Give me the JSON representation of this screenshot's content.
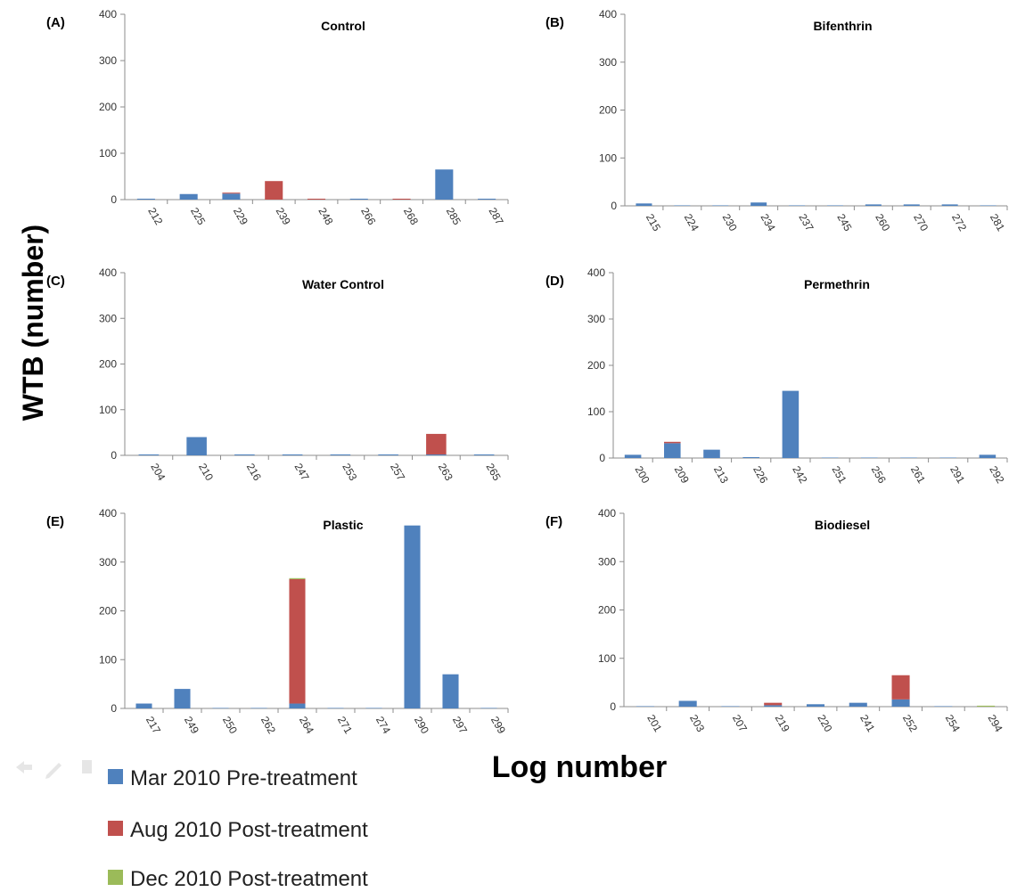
{
  "figure": {
    "ylabel": "WTB (number)",
    "xlabel": "Log number"
  },
  "legend": [
    {
      "label": "Mar 2010 Pre-treatment",
      "color": "#4f81bd"
    },
    {
      "label": "Aug 2010 Post-treatment",
      "color": "#c0504d"
    },
    {
      "label": "Dec 2010 Post-treatment",
      "color": "#9bbb59"
    }
  ],
  "chart_data": [
    {
      "type": "bar",
      "stacked": true,
      "panel": "(A)",
      "title": "Control",
      "ylim": [
        0,
        400
      ],
      "yticks": [
        0,
        100,
        200,
        300,
        400
      ],
      "categories": [
        "212",
        "225",
        "229",
        "239",
        "248",
        "266",
        "268",
        "285",
        "287"
      ],
      "series": [
        {
          "name": "Mar 2010 Pre-treatment",
          "values": [
            2,
            12,
            13,
            0,
            0,
            2,
            0,
            65,
            2
          ]
        },
        {
          "name": "Aug 2010 Post-treatment",
          "values": [
            0,
            0,
            2,
            40,
            2,
            0,
            2,
            0,
            0
          ]
        },
        {
          "name": "Dec 2010 Post-treatment",
          "values": [
            0,
            0,
            0,
            0,
            0,
            0,
            0,
            0,
            0
          ]
        }
      ]
    },
    {
      "type": "bar",
      "stacked": true,
      "panel": "(B)",
      "title": "Bifenthrin",
      "ylim": [
        0,
        400
      ],
      "yticks": [
        0,
        100,
        200,
        300,
        400
      ],
      "categories": [
        "215",
        "224",
        "230",
        "234",
        "237",
        "245",
        "260",
        "270",
        "272",
        "281"
      ],
      "series": [
        {
          "name": "Mar 2010 Pre-treatment",
          "values": [
            5,
            1,
            1,
            7,
            1,
            1,
            3,
            3,
            3,
            1
          ]
        },
        {
          "name": "Aug 2010 Post-treatment",
          "values": [
            0,
            0,
            0,
            0,
            0,
            0,
            0,
            0,
            0,
            0
          ]
        },
        {
          "name": "Dec 2010 Post-treatment",
          "values": [
            0,
            0,
            0,
            0,
            0,
            0,
            0,
            0,
            0,
            0
          ]
        }
      ]
    },
    {
      "type": "bar",
      "stacked": true,
      "panel": "(C)",
      "title": "Water Control",
      "ylim": [
        0,
        400
      ],
      "yticks": [
        0,
        100,
        200,
        300,
        400
      ],
      "categories": [
        "204",
        "210",
        "216",
        "247",
        "253",
        "257",
        "263",
        "265"
      ],
      "series": [
        {
          "name": "Mar 2010 Pre-treatment",
          "values": [
            2,
            40,
            2,
            2,
            2,
            2,
            2,
            2
          ]
        },
        {
          "name": "Aug 2010 Post-treatment",
          "values": [
            0,
            0,
            0,
            0,
            0,
            0,
            45,
            0
          ]
        },
        {
          "name": "Dec 2010 Post-treatment",
          "values": [
            0,
            0,
            0,
            0,
            0,
            0,
            0,
            0
          ]
        }
      ]
    },
    {
      "type": "bar",
      "stacked": true,
      "panel": "(D)",
      "title": "Permethrin",
      "ylim": [
        0,
        400
      ],
      "yticks": [
        0,
        100,
        200,
        300,
        400
      ],
      "categories": [
        "200",
        "209",
        "213",
        "226",
        "242",
        "251",
        "256",
        "261",
        "291",
        "292"
      ],
      "series": [
        {
          "name": "Mar 2010 Pre-treatment",
          "values": [
            7,
            32,
            18,
            2,
            145,
            1,
            1,
            1,
            1,
            7
          ]
        },
        {
          "name": "Aug 2010 Post-treatment",
          "values": [
            0,
            3,
            0,
            0,
            0,
            0,
            0,
            0,
            0,
            0
          ]
        },
        {
          "name": "Dec 2010 Post-treatment",
          "values": [
            0,
            0,
            0,
            0,
            0,
            0,
            0,
            0,
            0,
            0
          ]
        }
      ]
    },
    {
      "type": "bar",
      "stacked": true,
      "panel": "(E)",
      "title": "Plastic",
      "ylim": [
        0,
        400
      ],
      "yticks": [
        0,
        100,
        200,
        300,
        400
      ],
      "categories": [
        "217",
        "249",
        "250",
        "262",
        "264",
        "271",
        "274",
        "290",
        "297",
        "299"
      ],
      "series": [
        {
          "name": "Mar 2010 Pre-treatment",
          "values": [
            10,
            40,
            1,
            1,
            10,
            1,
            1,
            375,
            70,
            1
          ]
        },
        {
          "name": "Aug 2010 Post-treatment",
          "values": [
            0,
            0,
            0,
            0,
            255,
            0,
            0,
            0,
            0,
            0
          ]
        },
        {
          "name": "Dec 2010 Post-treatment",
          "values": [
            0,
            0,
            0,
            0,
            2,
            0,
            0,
            0,
            0,
            0
          ]
        }
      ]
    },
    {
      "type": "bar",
      "stacked": true,
      "panel": "(F)",
      "title": "Biodiesel",
      "ylim": [
        0,
        400
      ],
      "yticks": [
        0,
        100,
        200,
        300,
        400
      ],
      "categories": [
        "201",
        "203",
        "207",
        "219",
        "220",
        "241",
        "252",
        "254",
        "294"
      ],
      "series": [
        {
          "name": "Mar 2010 Pre-treatment",
          "values": [
            1,
            12,
            1,
            3,
            5,
            8,
            15,
            1,
            0
          ]
        },
        {
          "name": "Aug 2010 Post-treatment",
          "values": [
            0,
            0,
            0,
            5,
            0,
            0,
            50,
            0,
            0
          ]
        },
        {
          "name": "Dec 2010 Post-treatment",
          "values": [
            0,
            0,
            0,
            0,
            0,
            0,
            0,
            0,
            2
          ]
        }
      ]
    }
  ]
}
